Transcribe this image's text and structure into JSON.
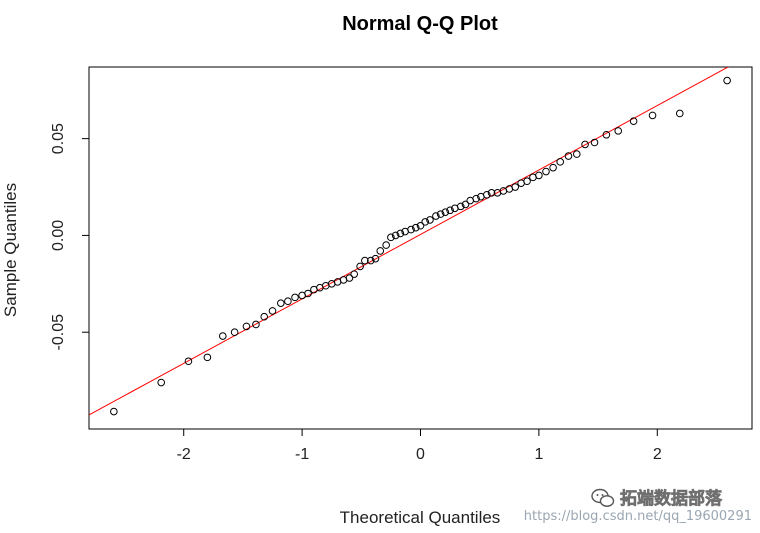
{
  "chart_data": {
    "type": "scatter",
    "title": "Normal Q-Q Plot",
    "xlabel": "Theoretical Quantiles",
    "ylabel": "Sample Quantiles",
    "xlim": [
      -2.8,
      2.8
    ],
    "ylim": [
      -0.1,
      0.087
    ],
    "x_ticks": [
      -2,
      -1,
      0,
      1,
      2
    ],
    "x_tick_labels": [
      "-2",
      "-1",
      "0",
      "1",
      "2"
    ],
    "y_ticks": [
      -0.05,
      0.0,
      0.05
    ],
    "y_tick_labels": [
      "-0.05",
      "0.00",
      "0.05"
    ],
    "grid": false,
    "reference_line": {
      "color": "#ff0000",
      "slope": 0.0333,
      "intercept": 0.0005
    },
    "point_color": "#000000",
    "x": [
      -2.59,
      -2.19,
      -1.96,
      -1.8,
      -1.67,
      -1.57,
      -1.47,
      -1.39,
      -1.32,
      -1.25,
      -1.18,
      -1.12,
      -1.06,
      -1.0,
      -0.95,
      -0.9,
      -0.85,
      -0.8,
      -0.75,
      -0.7,
      -0.65,
      -0.6,
      -0.56,
      -0.51,
      -0.47,
      -0.42,
      -0.38,
      -0.34,
      -0.29,
      -0.25,
      -0.21,
      -0.17,
      -0.13,
      -0.08,
      -0.04,
      0.0,
      0.04,
      0.08,
      0.13,
      0.17,
      0.21,
      0.25,
      0.29,
      0.34,
      0.38,
      0.42,
      0.47,
      0.51,
      0.56,
      0.6,
      0.65,
      0.7,
      0.75,
      0.8,
      0.85,
      0.9,
      0.95,
      1.0,
      1.06,
      1.12,
      1.18,
      1.25,
      1.32,
      1.39,
      1.47,
      1.57,
      1.67,
      1.8,
      1.96,
      2.19,
      2.59
    ],
    "y": [
      -0.091,
      -0.076,
      -0.065,
      -0.063,
      -0.052,
      -0.05,
      -0.047,
      -0.046,
      -0.042,
      -0.039,
      -0.035,
      -0.034,
      -0.032,
      -0.031,
      -0.03,
      -0.028,
      -0.027,
      -0.026,
      -0.025,
      -0.024,
      -0.023,
      -0.022,
      -0.02,
      -0.016,
      -0.013,
      -0.013,
      -0.012,
      -0.008,
      -0.005,
      -0.001,
      0.0,
      0.001,
      0.002,
      0.003,
      0.004,
      0.005,
      0.007,
      0.008,
      0.01,
      0.011,
      0.012,
      0.013,
      0.014,
      0.015,
      0.016,
      0.018,
      0.019,
      0.02,
      0.021,
      0.022,
      0.022,
      0.023,
      0.024,
      0.025,
      0.027,
      0.028,
      0.03,
      0.031,
      0.033,
      0.035,
      0.038,
      0.041,
      0.042,
      0.047,
      0.048,
      0.052,
      0.054,
      0.059,
      0.062,
      0.063,
      0.08
    ]
  },
  "watermark": {
    "url_text": "https://blog.csdn.net/qq_19600291",
    "brand_text": "拓端数据部落"
  }
}
